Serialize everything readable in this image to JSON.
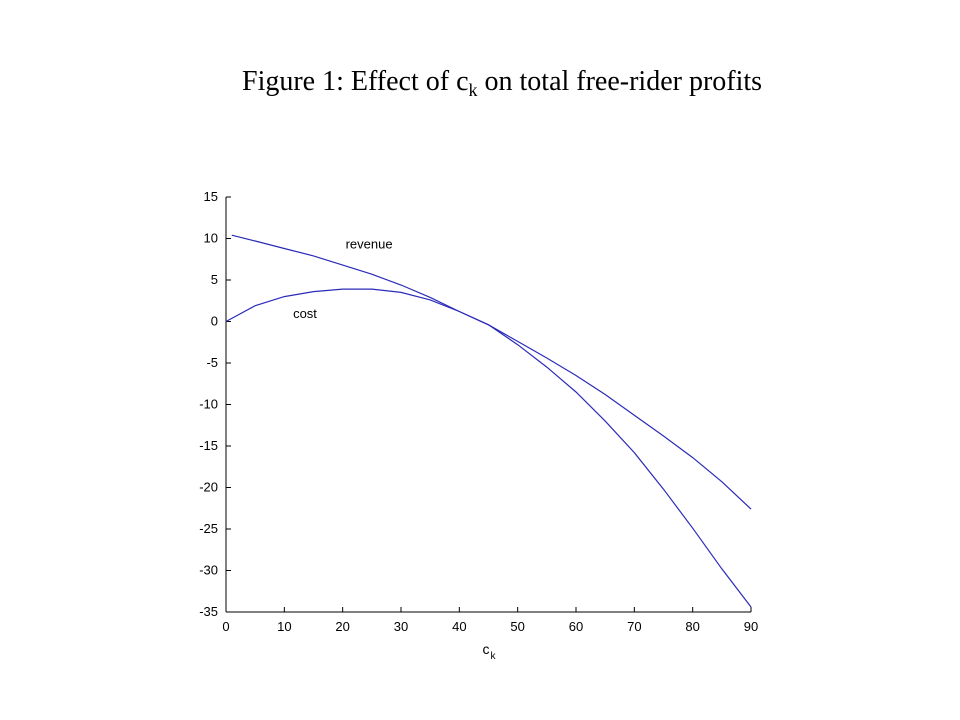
{
  "title": {
    "main": "Figure 1: Effect of c",
    "sub": "k",
    "rest": " on total free-rider profits"
  },
  "chart_data": {
    "type": "line",
    "xlabel": "c",
    "xlabel_sub": "k",
    "ylabel": "",
    "xlim": [
      0,
      90
    ],
    "ylim": [
      -35,
      15
    ],
    "xticks": [
      0,
      10,
      20,
      30,
      40,
      50,
      60,
      70,
      80,
      90
    ],
    "yticks": [
      15,
      10,
      5,
      0,
      -5,
      -10,
      -15,
      -20,
      -25,
      -30,
      -35
    ],
    "grid": false,
    "line_color": "#2b2bb8",
    "series": [
      {
        "name": "revenue",
        "x": [
          1,
          5,
          10,
          15,
          20,
          25,
          30,
          35,
          40,
          45,
          50,
          55,
          60,
          65,
          70,
          75,
          80,
          85,
          90
        ],
        "y": [
          10.4,
          9.7,
          8.8,
          7.9,
          6.8,
          5.7,
          4.4,
          2.9,
          1.2,
          -0.4,
          -2.4,
          -4.4,
          -6.5,
          -8.8,
          -11.3,
          -13.8,
          -16.4,
          -19.3,
          -22.6
        ]
      },
      {
        "name": "cost",
        "x": [
          0,
          5,
          10,
          15,
          20,
          25,
          30,
          35,
          40,
          45,
          50,
          55,
          60,
          65,
          70,
          75,
          80,
          85,
          90
        ],
        "y": [
          0,
          1.9,
          3.0,
          3.6,
          3.9,
          3.9,
          3.5,
          2.6,
          1.2,
          -0.4,
          -2.8,
          -5.5,
          -8.5,
          -12.0,
          -15.8,
          -20.2,
          -24.9,
          -29.8,
          -34.4
        ]
      }
    ],
    "annotations": [
      {
        "text": "revenue",
        "x": 20.5,
        "y": 9.3
      },
      {
        "text": "cost",
        "x": 11.5,
        "y": 0.9
      }
    ]
  }
}
